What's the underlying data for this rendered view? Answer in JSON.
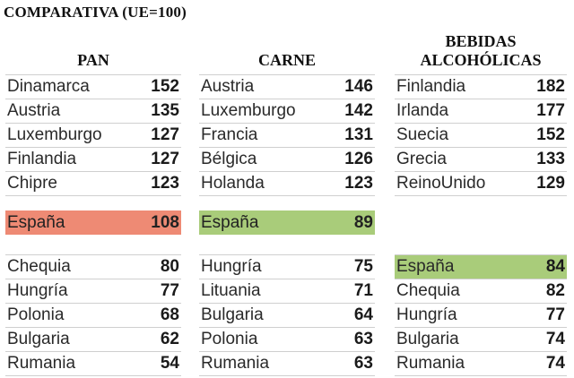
{
  "title": "COMPARATIVA (UE=100)",
  "pan": {
    "header": "PAN",
    "top": [
      {
        "name": "Dinamarca",
        "value": "152"
      },
      {
        "name": "Austria",
        "value": "135"
      },
      {
        "name": "Luxemburgo",
        "value": "127"
      },
      {
        "name": "Finlandia",
        "value": "127"
      },
      {
        "name": "Chipre",
        "value": "123"
      }
    ],
    "spain": {
      "name": "España",
      "value": "108"
    },
    "bottom": [
      {
        "name": "Chequia",
        "value": "80"
      },
      {
        "name": "Hungría",
        "value": "77"
      },
      {
        "name": "Polonia",
        "value": "68"
      },
      {
        "name": "Bulgaria",
        "value": "62"
      },
      {
        "name": "Rumania",
        "value": "54"
      }
    ]
  },
  "carne": {
    "header": "CARNE",
    "top": [
      {
        "name": "Austria",
        "value": "146"
      },
      {
        "name": "Luxemburgo",
        "value": "142"
      },
      {
        "name": "Francia",
        "value": "131"
      },
      {
        "name": "Bélgica",
        "value": "126"
      },
      {
        "name": "Holanda",
        "value": "123"
      }
    ],
    "spain": {
      "name": "España",
      "value": "89"
    },
    "bottom": [
      {
        "name": "Hungría",
        "value": "75"
      },
      {
        "name": "Lituania",
        "value": "71"
      },
      {
        "name": "Bulgaria",
        "value": "64"
      },
      {
        "name": "Polonia",
        "value": "63"
      },
      {
        "name": "Rumania",
        "value": "63"
      }
    ]
  },
  "bebidas": {
    "header_line1": "BEBIDAS",
    "header_line2": "ALCOHÓLICAS",
    "top": [
      {
        "name": "Finlandia",
        "value": "182"
      },
      {
        "name": "Irlanda",
        "value": "177"
      },
      {
        "name": "Suecia",
        "value": "152"
      },
      {
        "name": "Grecia",
        "value": "133"
      },
      {
        "name": "ReinoUnido",
        "value": "129"
      }
    ],
    "bottom": [
      {
        "name": "España",
        "value": "84"
      },
      {
        "name": "Chequia",
        "value": "82"
      },
      {
        "name": "Hungría",
        "value": "77"
      },
      {
        "name": "Bulgaria",
        "value": "74"
      },
      {
        "name": "Rumania",
        "value": "74"
      }
    ]
  },
  "colors": {
    "spain_pan": "#ee8a74",
    "spain_carne": "#a9cc7a",
    "spain_bebidas": "#a9cc7a"
  }
}
